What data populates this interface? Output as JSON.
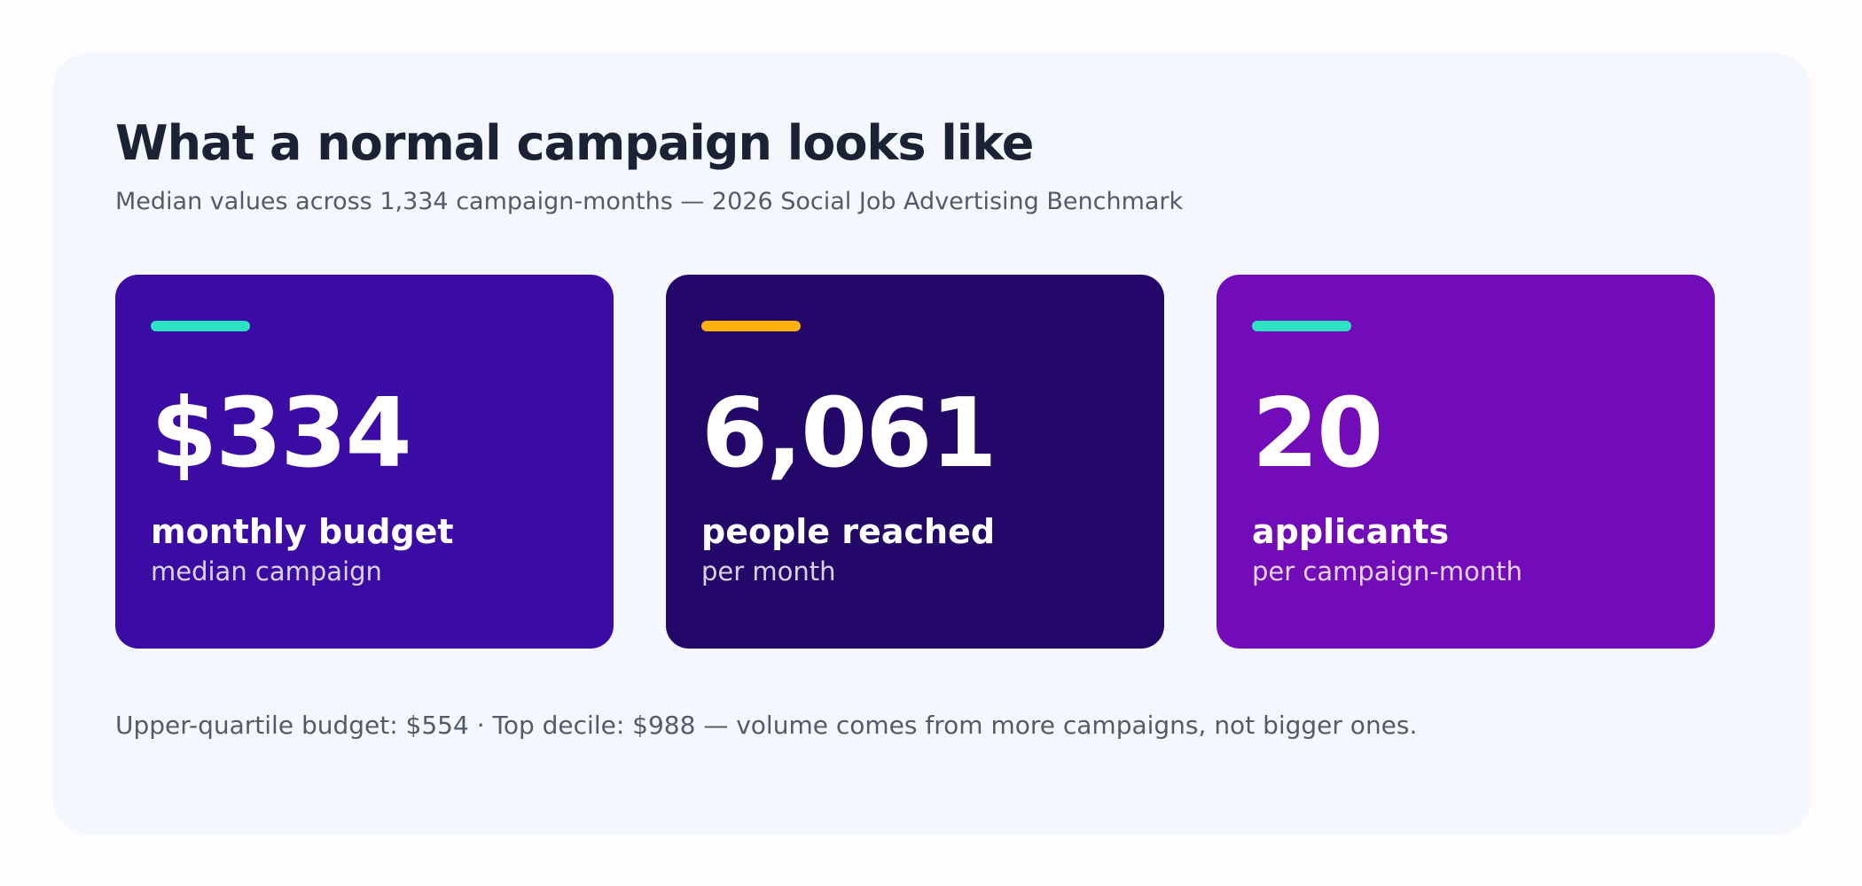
{
  "header": {
    "title": "What a normal campaign looks like",
    "subtitle": "Median values across 1,334 campaign-months — 2026 Social Job Advertising Benchmark"
  },
  "cards": [
    {
      "value": "$334",
      "label": "monthly budget",
      "sublabel": "median campaign",
      "background": "#3a0ca3",
      "accent_color": "#2de2c4"
    },
    {
      "value": "6,061",
      "label": "people reached",
      "sublabel": "per month",
      "background": "#240869",
      "accent_color": "#ffb00a"
    },
    {
      "value": "20",
      "label": "applicants",
      "sublabel": "per campaign-month",
      "background": "#720cb8",
      "accent_color": "#2de2c4"
    }
  ],
  "footnote": "Upper-quartile budget: $554  ·  Top decile: $988  —  volume comes from more campaigns, not bigger ones."
}
